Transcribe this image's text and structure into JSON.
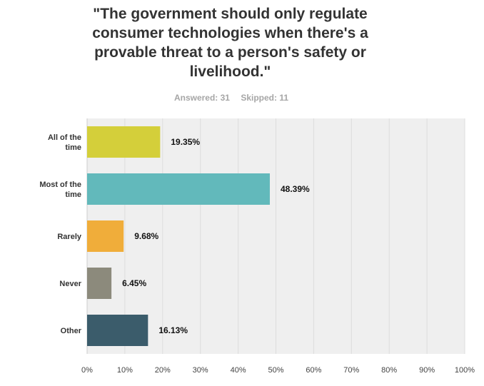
{
  "header": {
    "title": "\"The government should only regulate consumer technologies when there's a provable threat to a person's safety or livelihood.\"",
    "answered": "Answered: 31",
    "skipped": "Skipped: 11"
  },
  "chart_data": {
    "type": "bar",
    "orientation": "horizontal",
    "title": "\"The government should only regulate consumer technologies when there's a provable threat to a person's safety or livelihood.\"",
    "categories": [
      "All of the time",
      "Most of the time",
      "Rarely",
      "Never",
      "Other"
    ],
    "values": [
      19.35,
      48.39,
      9.68,
      6.45,
      16.13
    ],
    "value_labels": [
      "19.35%",
      "48.39%",
      "9.68%",
      "6.45%",
      "16.13%"
    ],
    "colors": [
      "#d4cf3a",
      "#62b9bb",
      "#f0ad3a",
      "#8c8a7c",
      "#3b5c6b"
    ],
    "x_ticks": [
      "0%",
      "10%",
      "20%",
      "30%",
      "40%",
      "50%",
      "60%",
      "70%",
      "80%",
      "90%",
      "100%"
    ],
    "xlim": [
      0,
      100
    ],
    "xlabel": "",
    "ylabel": "",
    "grid": true
  }
}
